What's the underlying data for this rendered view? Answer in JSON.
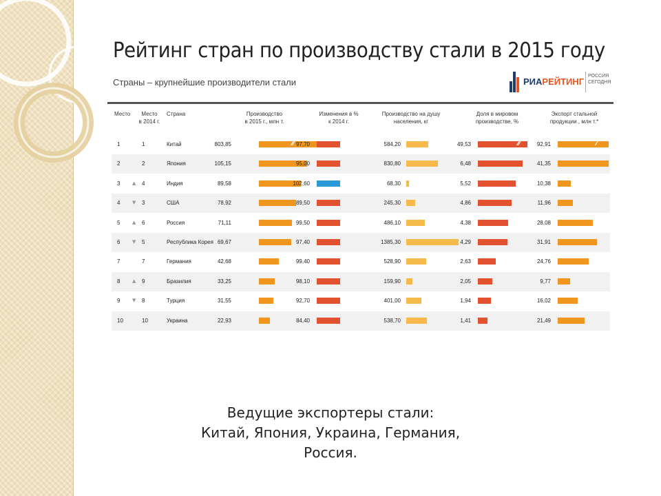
{
  "slide": {
    "caption_line1": "Ведущие экспортеры стали:",
    "caption_line2": "Китай, Япония, Украина, Германия,",
    "caption_line3": "Россия."
  },
  "logo": {
    "text_main": "РИА",
    "text_accent": "РЕЙТИНГ",
    "sub1": "РОССИЯ",
    "sub2": "СЕГОДНЯ"
  },
  "colors": {
    "orange": "#f0961e",
    "red": "#e2522e",
    "light_orange": "#f6b94c",
    "blue": "#2a9ad8",
    "rule": "#555555",
    "row_alt": "#f1f1f1"
  },
  "chart_data": {
    "type": "table",
    "title": "Рейтинг стран по производству стали в 2015 году",
    "subtitle": "Страны – крупнейшие производители стали",
    "headers": {
      "rank": "Место",
      "rank2014_l1": "Место",
      "rank2014_l2": "в 2014 г.",
      "country": "Страна",
      "production_l1": "Производство",
      "production_l2": "в 2015 г., млн т.",
      "change_l1": "Изменения в %",
      "change_l2": "к 2014 г.",
      "percapita_l1": "Производство на душу",
      "percapita_l2": "населения, кг",
      "share_l1": "Доля в мировом",
      "share_l2": "производстве, %",
      "export_l1": "Экспорт стальной",
      "export_l2": "продукции , млн т.*"
    },
    "rows": [
      {
        "rank": "1",
        "rank2014": "1",
        "move": "",
        "country": "Китай",
        "production": "803,85",
        "change": "97,70",
        "per_capita": "584,20",
        "share": "49,53",
        "export": "92,91"
      },
      {
        "rank": "2",
        "rank2014": "2",
        "move": "",
        "country": "Япония",
        "production": "105,15",
        "change": "95,00",
        "per_capita": "830,80",
        "share": "6,48",
        "export": "41,35"
      },
      {
        "rank": "3",
        "rank2014": "4",
        "move": "up",
        "country": "Индия",
        "production": "89,58",
        "change": "102,60",
        "per_capita": "68,30",
        "share": "5,52",
        "export": "10,38"
      },
      {
        "rank": "4",
        "rank2014": "3",
        "move": "down",
        "country": "США",
        "production": "78,92",
        "change": "89,50",
        "per_capita": "245,30",
        "share": "4,86",
        "export": "11,96"
      },
      {
        "rank": "5",
        "rank2014": "6",
        "move": "up",
        "country": "Россия",
        "production": "71,11",
        "change": "99,50",
        "per_capita": "486,10",
        "share": "4,38",
        "export": "28,08"
      },
      {
        "rank": "6",
        "rank2014": "5",
        "move": "down",
        "country": "Республика Корея",
        "production": "69,67",
        "change": "97,40",
        "per_capita": "1385,30",
        "share": "4,29",
        "export": "31,91"
      },
      {
        "rank": "7",
        "rank2014": "7",
        "move": "",
        "country": "Германия",
        "production": "42,68",
        "change": "99,40",
        "per_capita": "528,90",
        "share": "2,63",
        "export": "24,76"
      },
      {
        "rank": "8",
        "rank2014": "9",
        "move": "up",
        "country": "Бразилия",
        "production": "33,25",
        "change": "98,10",
        "per_capita": "159,90",
        "share": "2,05",
        "export": "9,77"
      },
      {
        "rank": "9",
        "rank2014": "8",
        "move": "down",
        "country": "Турция",
        "production": "31,55",
        "change": "92,70",
        "per_capita": "401,00",
        "share": "1,94",
        "export": "16,02"
      },
      {
        "rank": "10",
        "rank2014": "10",
        "move": "",
        "country": "Украина",
        "production": "22,93",
        "change": "84,40",
        "per_capita": "538,70",
        "share": "1,41",
        "export": "21,49"
      }
    ]
  }
}
